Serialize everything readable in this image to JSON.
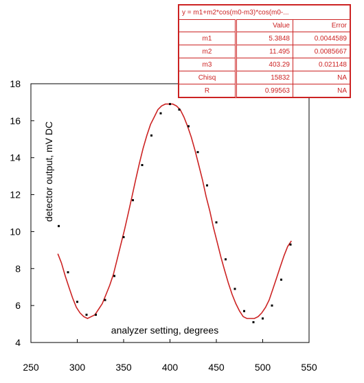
{
  "chart_data": {
    "type": "scatter",
    "title": "",
    "xlabel": "analyzer setting, degrees",
    "ylabel": "detector output, mV DC",
    "xlim": [
      250,
      550
    ],
    "ylim": [
      4,
      18
    ],
    "x_ticks": [
      250,
      300,
      350,
      400,
      450,
      500,
      550
    ],
    "y_ticks": [
      4,
      6,
      8,
      10,
      12,
      14,
      16,
      18
    ],
    "x_tick_labels": [
      "250",
      "300",
      "350",
      "400",
      "450",
      "500",
      "550"
    ],
    "y_tick_labels": [
      "4",
      "6",
      "8",
      "10",
      "12",
      "14",
      "16",
      "18"
    ],
    "grid": false,
    "series": [
      {
        "kind": "points",
        "color": "#000000",
        "x": [
          280,
          290,
          300,
          310,
          320,
          330,
          340,
          350,
          360,
          370,
          380,
          390,
          400,
          410,
          420,
          430,
          440,
          450,
          460,
          470,
          480,
          490,
          500,
          510,
          520,
          530
        ],
        "y": [
          10.3,
          7.8,
          6.2,
          5.5,
          5.5,
          6.3,
          7.6,
          9.7,
          11.7,
          13.6,
          15.2,
          16.4,
          16.9,
          16.6,
          15.7,
          14.3,
          12.5,
          10.5,
          8.5,
          6.9,
          5.7,
          5.1,
          5.3,
          6.0,
          7.4,
          9.3
        ]
      },
      {
        "kind": "fit-curve",
        "color": "#cc2222",
        "x": [
          279,
          283,
          287,
          291,
          295,
          299,
          303,
          307,
          311,
          315,
          319,
          323,
          327,
          331,
          335,
          339,
          343,
          347,
          351,
          355,
          359,
          363,
          367,
          371,
          375,
          379,
          383,
          387,
          391,
          395,
          399,
          403,
          407,
          411,
          415,
          419,
          423,
          427,
          431,
          435,
          439,
          443,
          447,
          451,
          455,
          459,
          463,
          467,
          471,
          475,
          479,
          483,
          487,
          491,
          495,
          499,
          503,
          507,
          511,
          515,
          519,
          523,
          527,
          531
        ],
        "y": [
          8.8,
          8.3,
          7.6,
          7.0,
          6.4,
          5.9,
          5.6,
          5.4,
          5.3,
          5.4,
          5.5,
          5.8,
          6.1,
          6.6,
          7.1,
          7.7,
          8.5,
          9.3,
          10.1,
          11.0,
          11.9,
          12.8,
          13.7,
          14.5,
          15.2,
          15.8,
          16.2,
          16.6,
          16.8,
          16.9,
          16.9,
          16.9,
          16.8,
          16.6,
          16.2,
          15.7,
          15.1,
          14.4,
          13.6,
          12.8,
          11.9,
          11.1,
          10.2,
          9.4,
          8.6,
          7.9,
          7.2,
          6.6,
          6.1,
          5.7,
          5.4,
          5.3,
          5.3,
          5.3,
          5.4,
          5.6,
          5.9,
          6.3,
          6.9,
          7.5,
          8.1,
          8.7,
          9.2,
          9.5
        ]
      }
    ],
    "fit_table": {
      "equation": "y = m1+m2*cos(m0-m3)*cos(m0-...",
      "headers": [
        "",
        "Value",
        "Error"
      ],
      "rows": [
        {
          "name": "m1",
          "value": "5.3848",
          "error": "0.0044589"
        },
        {
          "name": "m2",
          "value": "11.495",
          "error": "0.0085667"
        },
        {
          "name": "m3",
          "value": "403.29",
          "error": "0.021148"
        },
        {
          "name": "Chisq",
          "value": "15832",
          "error": "NA"
        },
        {
          "name": "R",
          "value": "0.99563",
          "error": "NA"
        }
      ]
    }
  }
}
